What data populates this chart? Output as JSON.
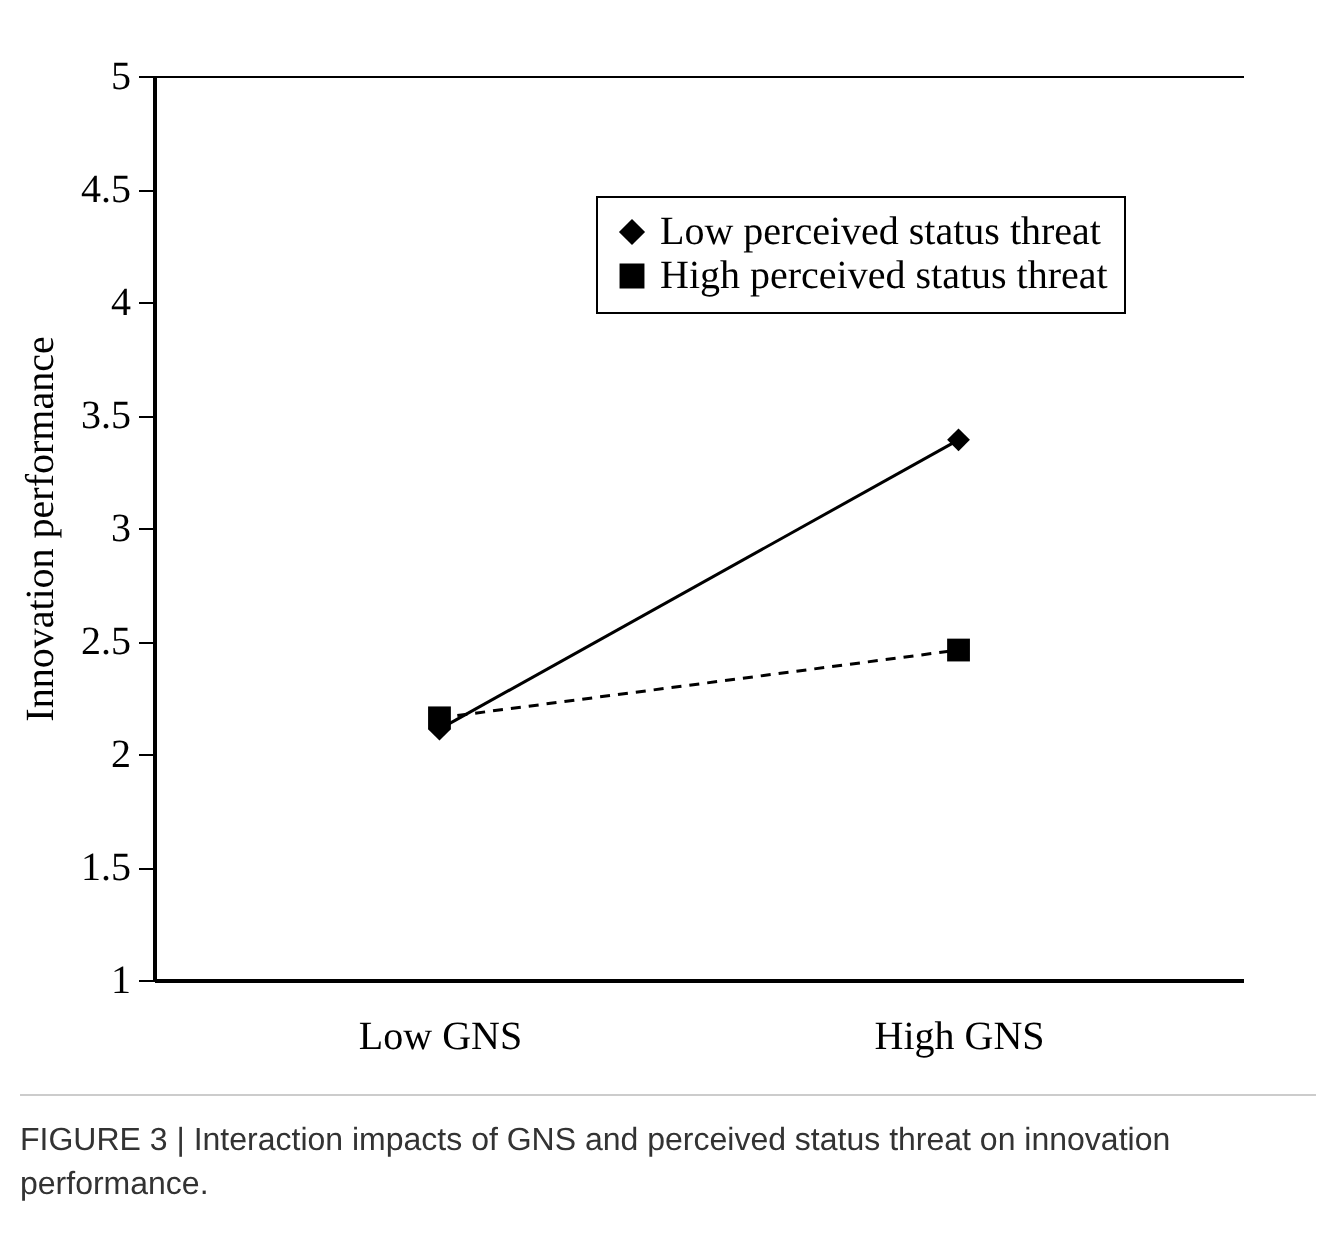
{
  "chart_data": {
    "type": "line",
    "ylabel": "Innovation performance",
    "categories": [
      "Low GNS",
      "High GNS"
    ],
    "series": [
      {
        "name": "Low perceived status threat",
        "color": "#000000",
        "values": [
          2.11,
          3.39
        ],
        "marker": "diamond",
        "line_style": "solid"
      },
      {
        "name": "High perceived status threat",
        "color": "#000000",
        "values": [
          2.16,
          2.46
        ],
        "marker": "square",
        "line_style": "dashed"
      }
    ],
    "ylim": [
      1,
      5
    ],
    "yticks": [
      1,
      1.5,
      2,
      2.5,
      3,
      3.5,
      4,
      4.5,
      5
    ],
    "grid": false,
    "legend": "top right",
    "annotations": [
      "FIGURE 3 | Interaction impacts of GNS and perceived status threat on innovation performance."
    ]
  }
}
